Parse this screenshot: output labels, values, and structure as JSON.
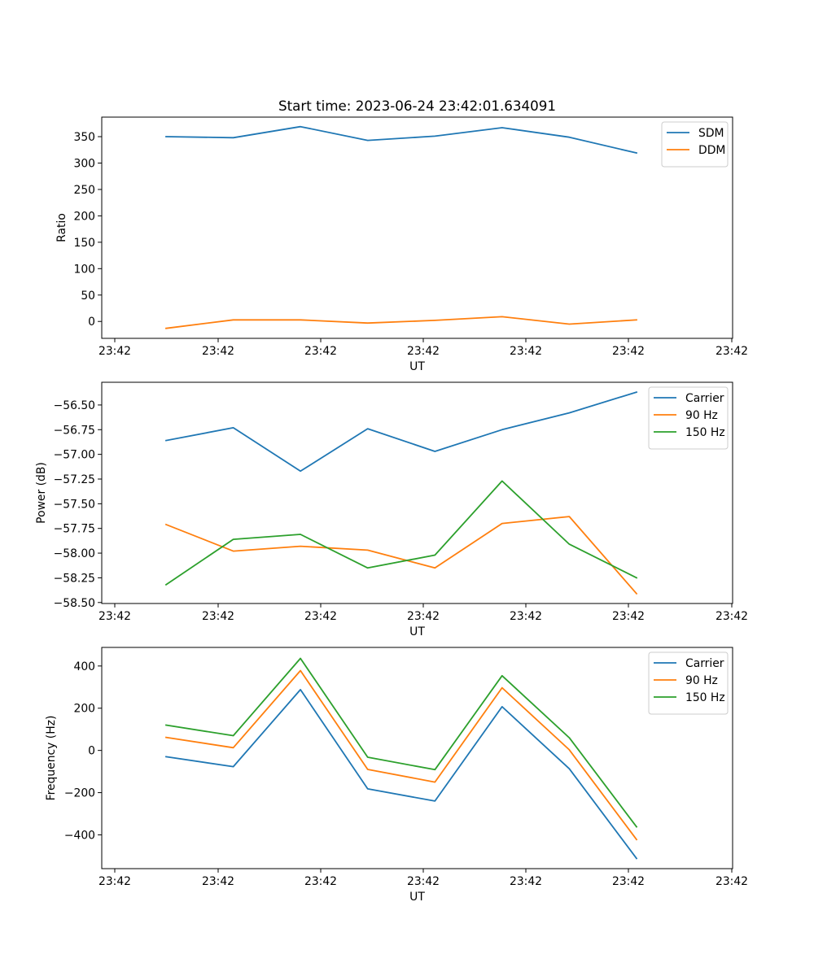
{
  "figure": {
    "title": "Start time: 2023-06-24 23:42:01.634091"
  },
  "colors": {
    "blue": "#1f77b4",
    "orange": "#ff7f0e",
    "green": "#2ca02c"
  },
  "chart_data": [
    {
      "type": "line",
      "title": "Start time: 2023-06-24 23:42:01.634091",
      "xlabel": "UT",
      "ylabel": "Ratio",
      "x_tick_labels": [
        "23:42",
        "23:42",
        "23:42",
        "23:42",
        "23:42",
        "23:42",
        "23:42"
      ],
      "y_ticks": [
        0,
        50,
        100,
        150,
        200,
        250,
        300,
        350
      ],
      "y_tick_labels": [
        "0",
        "50",
        "100",
        "150",
        "200",
        "250",
        "300",
        "350"
      ],
      "ylim": [
        -32,
        387
      ],
      "legend": "top-right",
      "grid": false,
      "series": [
        {
          "name": "SDM",
          "color": "#1f77b4",
          "values": [
            350,
            348,
            369,
            343,
            351,
            367,
            349,
            319
          ]
        },
        {
          "name": "DDM",
          "color": "#ff7f0e",
          "values": [
            -13,
            3,
            3,
            -3,
            2,
            9,
            -5,
            3
          ]
        }
      ]
    },
    {
      "type": "line",
      "xlabel": "UT",
      "ylabel": "Power (dB)",
      "x_tick_labels": [
        "23:42",
        "23:42",
        "23:42",
        "23:42",
        "23:42",
        "23:42",
        "23:42"
      ],
      "y_ticks": [
        -58.5,
        -58.25,
        -58.0,
        -57.75,
        -57.5,
        -57.25,
        -57.0,
        -56.75,
        -56.5
      ],
      "y_tick_labels": [
        "−58.50",
        "−58.25",
        "−58.00",
        "−57.75",
        "−57.50",
        "−57.25",
        "−57.00",
        "−56.75",
        "−56.50"
      ],
      "ylim": [
        -58.51,
        -56.27
      ],
      "legend": "top-right",
      "grid": false,
      "series": [
        {
          "name": "Carrier",
          "color": "#1f77b4",
          "values": [
            -56.86,
            -56.73,
            -57.17,
            -56.74,
            -56.97,
            -56.75,
            -56.58,
            -56.37
          ]
        },
        {
          "name": "90 Hz",
          "color": "#ff7f0e",
          "values": [
            -57.71,
            -57.98,
            -57.93,
            -57.97,
            -58.15,
            -57.7,
            -57.63,
            -58.41
          ]
        },
        {
          "name": "150 Hz",
          "color": "#2ca02c",
          "values": [
            -58.32,
            -57.86,
            -57.81,
            -58.15,
            -58.02,
            -57.27,
            -57.91,
            -58.25
          ]
        }
      ]
    },
    {
      "type": "line",
      "xlabel": "UT",
      "ylabel": "Frequency (Hz)",
      "x_tick_labels": [
        "23:42",
        "23:42",
        "23:42",
        "23:42",
        "23:42",
        "23:42",
        "23:42"
      ],
      "y_ticks": [
        -400,
        -200,
        0,
        200,
        400
      ],
      "y_tick_labels": [
        "−400",
        "−200",
        "0",
        "200",
        "400"
      ],
      "ylim": [
        -560,
        488
      ],
      "legend": "top-right",
      "grid": false,
      "series": [
        {
          "name": "Carrier",
          "color": "#1f77b4",
          "values": [
            -30,
            -77,
            288,
            -182,
            -240,
            207,
            -87,
            -512
          ]
        },
        {
          "name": "90 Hz",
          "color": "#ff7f0e",
          "values": [
            62,
            13,
            378,
            -90,
            -150,
            297,
            3,
            -422
          ]
        },
        {
          "name": "150 Hz",
          "color": "#2ca02c",
          "values": [
            120,
            70,
            436,
            -32,
            -91,
            354,
            60,
            -362
          ]
        }
      ]
    }
  ]
}
